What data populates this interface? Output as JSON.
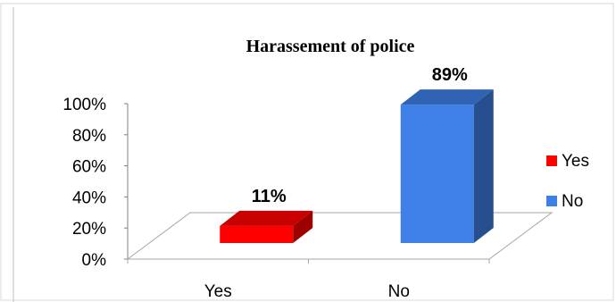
{
  "chart_data": {
    "type": "bar",
    "title": "Harassement of police",
    "categories": [
      "Yes",
      "No"
    ],
    "values": [
      11,
      89
    ],
    "value_labels": [
      "11%",
      "89%"
    ],
    "colors": [
      "#FF0000",
      "#3F7FE8"
    ],
    "ylim": [
      0,
      100
    ],
    "yticks": [
      "0%",
      "20%",
      "40%",
      "60%",
      "80%",
      "100%"
    ],
    "legend": {
      "position": "right",
      "entries": [
        {
          "label": "Yes",
          "color": "#FF0000"
        },
        {
          "label": "No",
          "color": "#3F7FE8"
        }
      ]
    },
    "grid": false,
    "three_d": true
  }
}
